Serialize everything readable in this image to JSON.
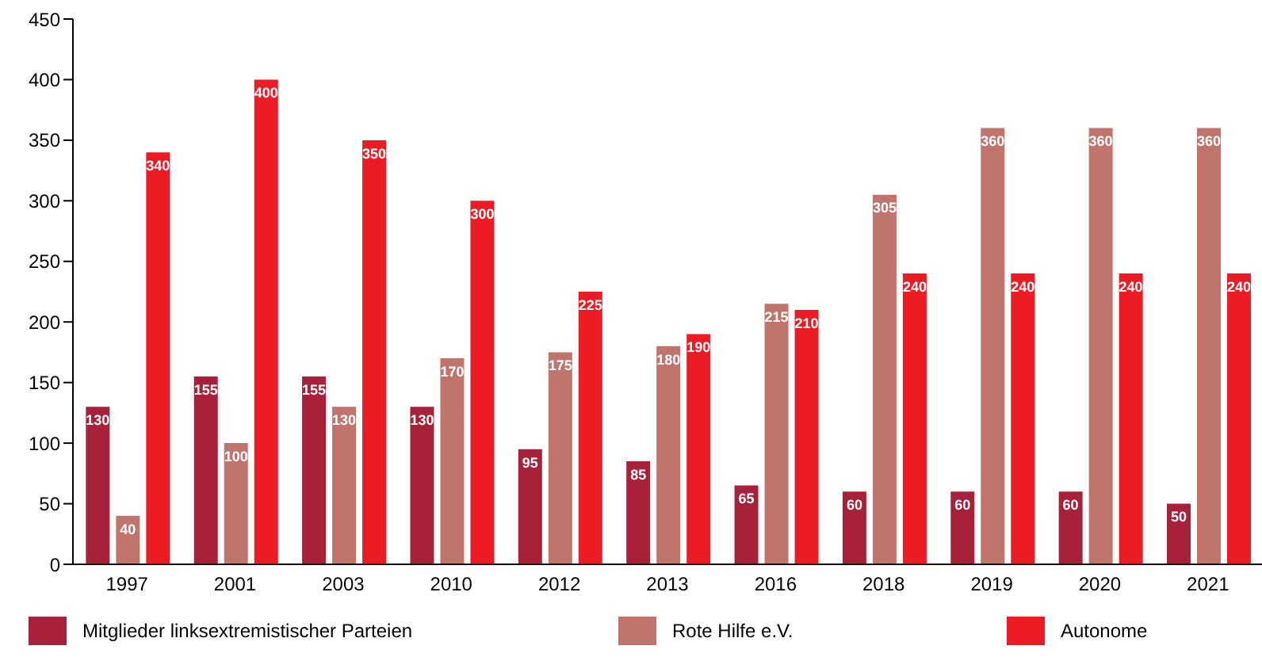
{
  "chart_data": {
    "type": "bar",
    "categories": [
      "1997",
      "2001",
      "2003",
      "2010",
      "2012",
      "2013",
      "2016",
      "2018",
      "2019",
      "2020",
      "2021"
    ],
    "series": [
      {
        "name": "Mitglieder linksextremistischer Parteien",
        "color": "#a8213b",
        "values": [
          130,
          155,
          155,
          130,
          95,
          85,
          65,
          60,
          60,
          60,
          50
        ]
      },
      {
        "name": "Rote Hilfe e.V.",
        "color": "#c0746b",
        "values": [
          40,
          100,
          130,
          170,
          175,
          180,
          215,
          305,
          360,
          360,
          360
        ]
      },
      {
        "name": "Autonome",
        "color": "#ed1c24",
        "values": [
          340,
          400,
          350,
          300,
          225,
          190,
          210,
          240,
          240,
          240,
          240
        ]
      }
    ],
    "ylim": [
      0,
      450
    ],
    "yticks": [
      0,
      50,
      100,
      150,
      200,
      250,
      300,
      350,
      400,
      450
    ],
    "grid": false,
    "legend": "bottom",
    "data_labels": true
  }
}
